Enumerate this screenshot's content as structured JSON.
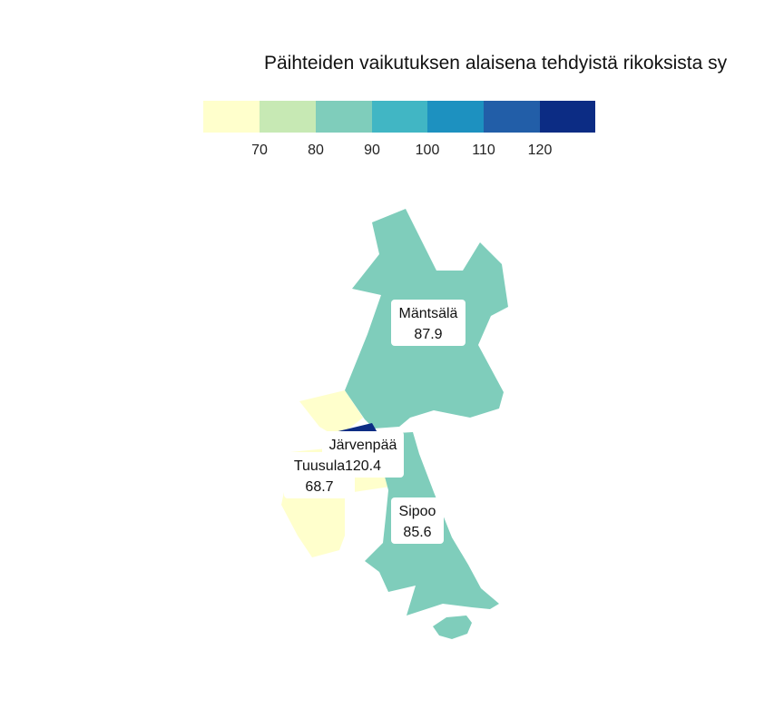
{
  "title": "Päihteiden vaikutuksen alaisena tehdyistä rikoksista sy",
  "legend": {
    "colors": [
      "#ffffcc",
      "#c7e9b4",
      "#7fcdbb",
      "#41b6c4",
      "#1d91c0",
      "#225ea8",
      "#0c2c84"
    ],
    "ticks": [
      "70",
      "80",
      "90",
      "100",
      "110",
      "120"
    ]
  },
  "chart_data": {
    "type": "choropleth",
    "title": "Päihteiden vaikutuksen alaisena tehdyistä rikoksista sy",
    "regions": [
      {
        "name": "Mäntsälä",
        "value_label": "87.9",
        "value": 87.9,
        "color": "#7fcdbb"
      },
      {
        "name": "Järvenpää",
        "value_label": "120.4",
        "value": 120.4,
        "color": "#0c2c84"
      },
      {
        "name": "Tuusula",
        "value_label": "68.7",
        "value": 68.7,
        "color": "#ffffcc"
      },
      {
        "name": "Sipoo",
        "value_label": "85.6",
        "value": 85.6,
        "color": "#7fcdbb"
      }
    ]
  }
}
